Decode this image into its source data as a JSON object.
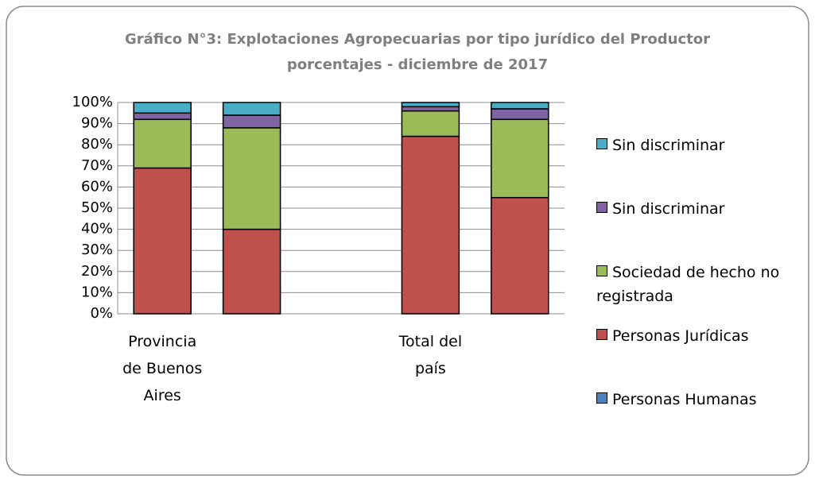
{
  "chart_data": {
    "type": "stacked_bar",
    "title": "Gráfico N°3: Explotaciones Agropecuarias por tipo jurídico del Productor",
    "subtitle": "porcentajes - diciembre de 2017",
    "categories": [
      "Provincia de Buenos Aires",
      null,
      null,
      "Total del país",
      null
    ],
    "series": [
      {
        "name": "Personas Humanas",
        "color": "#4f81bd",
        "values": [
          0,
          0,
          null,
          0,
          0
        ]
      },
      {
        "name": "Personas Jurídicas",
        "color": "#c0504d",
        "values": [
          69,
          40,
          null,
          84,
          55
        ]
      },
      {
        "name": "Sociedad de hecho no registrada",
        "color": "#9bbb59",
        "values": [
          23,
          48,
          null,
          12,
          37
        ]
      },
      {
        "name": "Sin discriminar",
        "color": "#8064a2",
        "values": [
          3,
          6,
          null,
          2,
          5
        ]
      },
      {
        "name": "Sin discriminar",
        "color": "#4bacc6",
        "values": [
          5,
          6,
          null,
          2,
          3
        ]
      }
    ],
    "ylim": [
      0,
      100
    ],
    "yticks": [
      {
        "value": 0,
        "label": "0%"
      },
      {
        "value": 10,
        "label": "10%"
      },
      {
        "value": 20,
        "label": "20%"
      },
      {
        "value": 30,
        "label": "30%"
      },
      {
        "value": 40,
        "label": "40%"
      },
      {
        "value": 50,
        "label": "50%"
      },
      {
        "value": 60,
        "label": "60%"
      },
      {
        "value": 70,
        "label": "70%"
      },
      {
        "value": 80,
        "label": "80%"
      },
      {
        "value": 90,
        "label": "90%"
      },
      {
        "value": 100,
        "label": "100%"
      }
    ],
    "grid": true,
    "legend": "right"
  }
}
